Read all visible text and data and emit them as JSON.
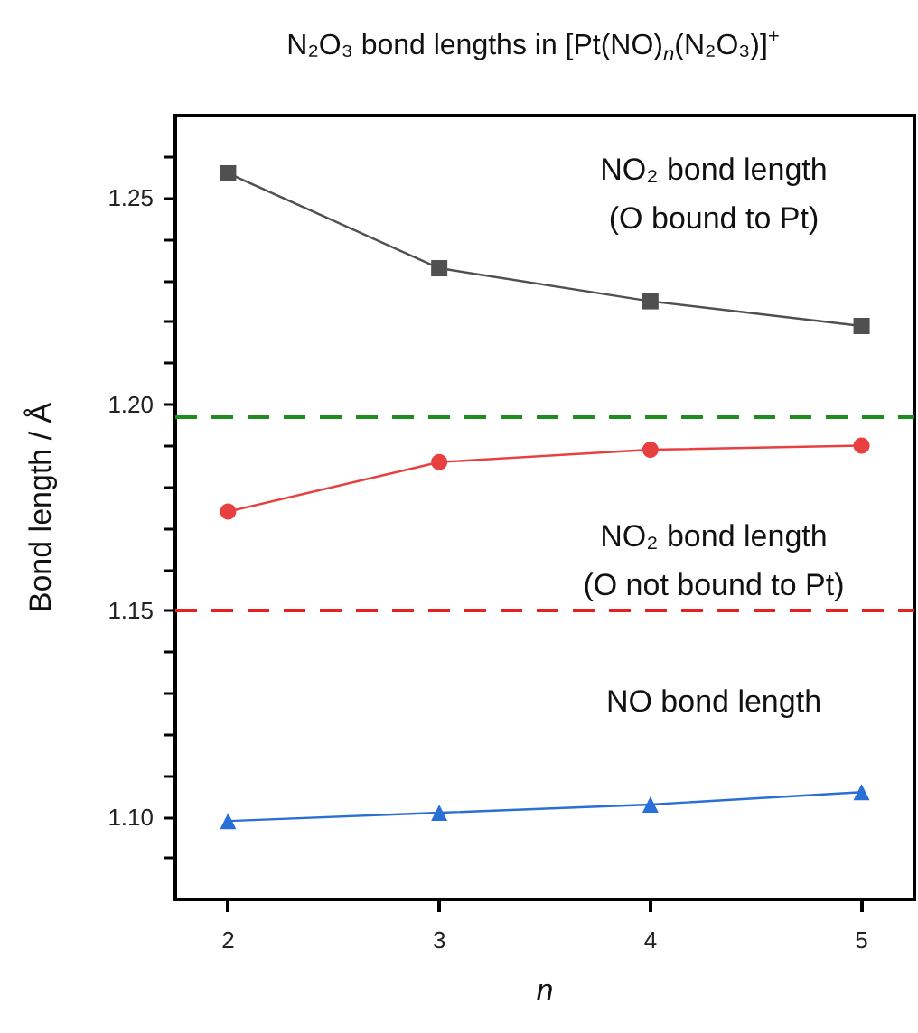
{
  "chart_data": {
    "type": "line",
    "title": "N₂O₃ bond lengths in [Pt(NO)$_{n}$(N₂O₃)]$^{+}$",
    "xlabel": "n",
    "ylabel": "Bond length / Å",
    "x": [
      2,
      3,
      4,
      5
    ],
    "series": [
      {
        "name": "NO₂ bond length (O bound to Pt)",
        "color": "#505050",
        "marker": "square",
        "values": [
          1.256,
          1.233,
          1.225,
          1.219
        ]
      },
      {
        "name": "NO₂ bond length (O not bound to Pt)",
        "color": "#e84040",
        "marker": "circle",
        "values": [
          1.174,
          1.186,
          1.189,
          1.19
        ]
      },
      {
        "name": "NO bond length",
        "color": "#2a6fd6",
        "marker": "triangle",
        "values": [
          1.099,
          1.101,
          1.103,
          1.106
        ]
      }
    ],
    "xlim": [
      1.75,
      5.25
    ],
    "xticks": [
      2,
      3,
      4,
      5
    ],
    "ylim": [
      1.08,
      1.27
    ],
    "yticks": [
      {
        "value": 1.09,
        "label": null
      },
      {
        "value": 1.1,
        "label": "1.10"
      },
      {
        "value": 1.11,
        "label": null
      },
      {
        "value": 1.12,
        "label": null
      },
      {
        "value": 1.13,
        "label": null
      },
      {
        "value": 1.14,
        "label": null
      },
      1.15,
      {
        "value": 1.16,
        "label": null
      },
      {
        "value": 1.17,
        "label": null
      },
      {
        "value": 1.18,
        "label": null
      },
      {
        "value": 1.19,
        "label": null
      },
      {
        "value": 1.2,
        "label": "1.20"
      },
      {
        "value": 1.21,
        "label": null
      },
      {
        "value": 1.22,
        "label": null
      },
      {
        "value": 1.23,
        "label": null
      },
      {
        "value": 1.24,
        "label": null
      },
      1.25,
      {
        "value": 1.26,
        "label": null
      }
    ],
    "ref_lines": [
      {
        "axis": "y",
        "value": 1.197,
        "color": "#1e8c1e",
        "line_style": "dashed"
      },
      {
        "axis": "y",
        "value": 1.15,
        "color": "#e82020",
        "line_style": "dashed"
      }
    ],
    "grid": false,
    "legend": false
  }
}
